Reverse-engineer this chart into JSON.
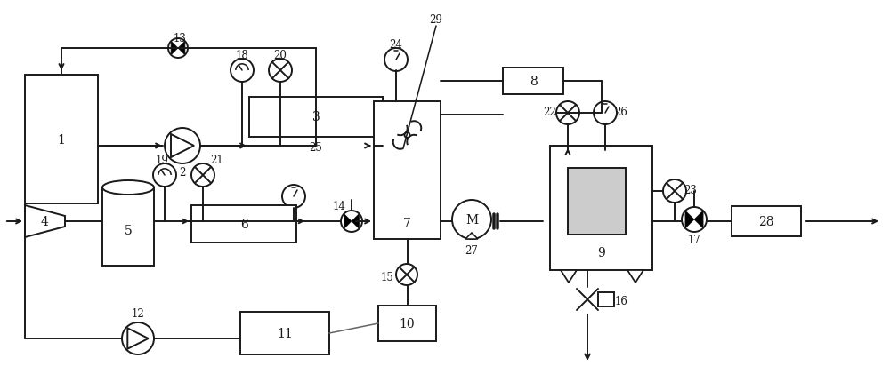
{
  "bg_color": "#ffffff",
  "lc": "#1a1a1a",
  "lw": 1.4,
  "fig_w": 10.0,
  "fig_h": 4.31
}
